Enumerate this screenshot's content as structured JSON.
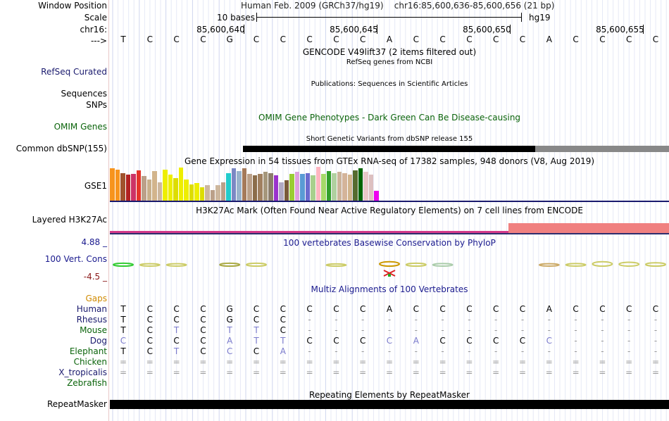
{
  "labels": {
    "window_position": "Window Position",
    "scale": "Scale",
    "chrom": "chr16:",
    "strand": "--->",
    "refseq": "RefSeq Curated",
    "sequences": "Sequences",
    "snps": "SNPs",
    "omim": "OMIM Genes",
    "dbsnp": "Common dbSNP(155)",
    "gse1": "GSE1",
    "h3k27ac": "Layered H3K27Ac",
    "phylop_max": "4.88 _",
    "vert_cons": "100 Vert. Cons",
    "phylop_min": "-4.5 _",
    "gaps": "Gaps",
    "repeatmasker": "RepeatMasker"
  },
  "header": {
    "assembly": "Human Feb. 2009 (GRCh37/hg19)",
    "position": "chr16:85,600,636-85,600,656 (21 bp)",
    "scale_label": "10 bases",
    "scale_db": "hg19"
  },
  "position_ticks": [
    {
      "label": "85,600,640",
      "col": 5
    },
    {
      "label": "85,600,645",
      "col": 10
    },
    {
      "label": "85,600,650",
      "col": 15
    },
    {
      "label": "85,600,655",
      "col": 20
    }
  ],
  "reference_bases": [
    "T",
    "C",
    "C",
    "C",
    "G",
    "C",
    "C",
    "C",
    "C",
    "C",
    "A",
    "C",
    "C",
    "C",
    "C",
    "C",
    "A",
    "C",
    "C",
    "C",
    "C"
  ],
  "tracks": {
    "gencode": "GENCODE V49lift37 (2 items filtered out)",
    "refseq": "RefSeq genes from NCBI",
    "publications": "Publications: Sequences in Scientific Articles",
    "omim": "OMIM Gene Phenotypes - Dark Green Can Be Disease-causing",
    "dbsnp": "Short Genetic Variants from dbSNP release 155",
    "gtex": "Gene Expression in 54 tissues from GTEx RNA-seq of 17382 samples, 948 donors (V8, Aug 2019)",
    "h3k27ac": "H3K27Ac Mark (Often Found Near Active Regulatory Elements) on 7 cell lines from ENCODE",
    "phylop": "100 vertebrates Basewise Conservation by PhyloP",
    "multiz": "Multiz Alignments of 100 Vertebrates",
    "repeatmasker": "Repeating Elements by RepeatMasker"
  },
  "gtex_bars": [
    {
      "v": 0.95,
      "c": "#f7941d"
    },
    {
      "v": 0.92,
      "c": "#f7941d"
    },
    {
      "v": 0.82,
      "c": "#a0522d"
    },
    {
      "v": 0.78,
      "c": "#b22222"
    },
    {
      "v": 0.8,
      "c": "#cc3366"
    },
    {
      "v": 0.9,
      "c": "#e5332a"
    },
    {
      "v": 0.72,
      "c": "#bba089"
    },
    {
      "v": 0.62,
      "c": "#c8b08c"
    },
    {
      "v": 0.88,
      "c": "#d2b48c"
    },
    {
      "v": 0.55,
      "c": "#cdb79e"
    },
    {
      "v": 0.92,
      "c": "#eeee00"
    },
    {
      "v": 0.78,
      "c": "#eeee00"
    },
    {
      "v": 0.66,
      "c": "#dddd00"
    },
    {
      "v": 0.98,
      "c": "#eeee00"
    },
    {
      "v": 0.62,
      "c": "#eeee00"
    },
    {
      "v": 0.48,
      "c": "#dddd00"
    },
    {
      "v": 0.52,
      "c": "#eeee00"
    },
    {
      "v": 0.4,
      "c": "#dddd00"
    },
    {
      "v": 0.45,
      "c": "#cdb79e"
    },
    {
      "v": 0.32,
      "c": "#bba089"
    },
    {
      "v": 0.45,
      "c": "#cdb79e"
    },
    {
      "v": 0.55,
      "c": "#bba089"
    },
    {
      "v": 0.82,
      "c": "#22cccc"
    },
    {
      "v": 0.95,
      "c": "#7b88c4"
    },
    {
      "v": 0.88,
      "c": "#99b3cc"
    },
    {
      "v": 0.96,
      "c": "#a57a5a"
    },
    {
      "v": 0.8,
      "c": "#bba089"
    },
    {
      "v": 0.76,
      "c": "#8b6d4a"
    },
    {
      "v": 0.8,
      "c": "#a08060"
    },
    {
      "v": 0.85,
      "c": "#a5977b"
    },
    {
      "v": 0.82,
      "c": "#8b7d6b"
    },
    {
      "v": 0.75,
      "c": "#9a32cd"
    },
    {
      "v": 0.55,
      "c": "#b1a9c4"
    },
    {
      "v": 0.6,
      "c": "#7a5a3a"
    },
    {
      "v": 0.8,
      "c": "#9acd32"
    },
    {
      "v": 0.85,
      "c": "#dda0dd"
    },
    {
      "v": 0.8,
      "c": "#5a9bd5"
    },
    {
      "v": 0.82,
      "c": "#6b6bce"
    },
    {
      "v": 0.75,
      "c": "#a8d08d"
    },
    {
      "v": 1.0,
      "c": "#ffb6c1"
    },
    {
      "v": 0.8,
      "c": "#a6d96a"
    },
    {
      "v": 0.88,
      "c": "#33a02c"
    },
    {
      "v": 0.82,
      "c": "#b0d0a0"
    },
    {
      "v": 0.85,
      "c": "#ccb39a"
    },
    {
      "v": 0.82,
      "c": "#d4b49a"
    },
    {
      "v": 0.78,
      "c": "#d2b48c"
    },
    {
      "v": 0.9,
      "c": "#556b2f"
    },
    {
      "v": 0.95,
      "c": "#006400"
    },
    {
      "v": 0.85,
      "c": "#e8c8c8"
    },
    {
      "v": 0.78,
      "c": "#ddc0c0"
    },
    {
      "v": 0.3,
      "c": "#ee00ee"
    }
  ],
  "conservation": [
    {
      "col": 0,
      "level": 0.15,
      "c": "#33cc33"
    },
    {
      "col": 1,
      "level": 0.1,
      "c": "#cccc66"
    },
    {
      "col": 2,
      "level": 0.1,
      "c": "#cccc66"
    },
    {
      "col": 4,
      "level": 0.15,
      "c": "#aaaa44"
    },
    {
      "col": 5,
      "level": 0.15,
      "c": "#cccc66"
    },
    {
      "col": 8,
      "level": 0.08,
      "c": "#cccc66"
    },
    {
      "col": 10,
      "level": 0.3,
      "c": "#cc9900"
    },
    {
      "col": 11,
      "level": 0.15,
      "c": "#cccc66"
    },
    {
      "col": 12,
      "level": 0.12,
      "c": "#aaccaa"
    },
    {
      "col": 16,
      "level": 0.1,
      "c": "#ccaa66"
    },
    {
      "col": 17,
      "level": 0.12,
      "c": "#cccc66"
    },
    {
      "col": 18,
      "level": 0.3,
      "c": "#cccc66"
    },
    {
      "col": 19,
      "level": 0.25,
      "c": "#cccc66"
    },
    {
      "col": 20,
      "level": 0.2,
      "c": "#cccc66"
    }
  ],
  "alignment": [
    {
      "species": "Human",
      "color": "#1a1a6e",
      "bases": [
        "T",
        "C",
        "C",
        "C",
        "G",
        "C",
        "C",
        "C",
        "C",
        "C",
        "A",
        "C",
        "C",
        "C",
        "C",
        "C",
        "A",
        "C",
        "C",
        "C",
        "C"
      ]
    },
    {
      "species": "Rhesus",
      "color": "#1a1a6e",
      "bases": [
        "T",
        "C",
        "C",
        "C",
        "G",
        "C",
        "C",
        "-",
        "-",
        "-",
        "-",
        "-",
        "-",
        "-",
        "-",
        "-",
        "-",
        "-",
        "-",
        "-",
        "-"
      ]
    },
    {
      "species": "Mouse",
      "color": "#0b640b",
      "bases": [
        "T",
        "C",
        "T",
        "C",
        "T",
        "T",
        "C",
        "-",
        "-",
        "-",
        "-",
        "-",
        "-",
        "-",
        "-",
        "-",
        "-",
        "-",
        "-",
        "-",
        "-"
      ]
    },
    {
      "species": "Dog",
      "color": "#1a1a6e",
      "bases": [
        "C",
        "C",
        "C",
        "C",
        "A",
        "T",
        "T",
        "C",
        "C",
        "C",
        "C",
        "A",
        "C",
        "C",
        "C",
        "C",
        "C",
        "-",
        "-",
        "-",
        "-"
      ]
    },
    {
      "species": "Elephant",
      "color": "#0b640b",
      "bases": [
        "T",
        "C",
        "T",
        "C",
        "C",
        "C",
        "A",
        "-",
        "-",
        "-",
        "-",
        "-",
        "-",
        "-",
        "-",
        "-",
        "-",
        "-",
        "-",
        "-",
        "-"
      ]
    },
    {
      "species": "Chicken",
      "color": "#0b640b",
      "bases": [
        "=",
        "=",
        "=",
        "=",
        "=",
        "=",
        "=",
        "=",
        "=",
        "=",
        "=",
        "=",
        "=",
        "=",
        "=",
        "=",
        "=",
        "=",
        "=",
        "=",
        "="
      ]
    },
    {
      "species": "X_tropicalis",
      "color": "#1a1a6e",
      "bases": [
        "=",
        "=",
        "=",
        "=",
        "=",
        "=",
        "=",
        "=",
        "=",
        "=",
        "=",
        "=",
        "=",
        "=",
        "=",
        "=",
        "=",
        "=",
        "=",
        "=",
        "="
      ]
    },
    {
      "species": "Zebrafish",
      "color": "#0b640b",
      "bases": []
    }
  ],
  "colors": {
    "ref_base": "#000000",
    "match_base": "#000000",
    "mismatch_base": "#7a7acc",
    "gap": "#999999"
  }
}
